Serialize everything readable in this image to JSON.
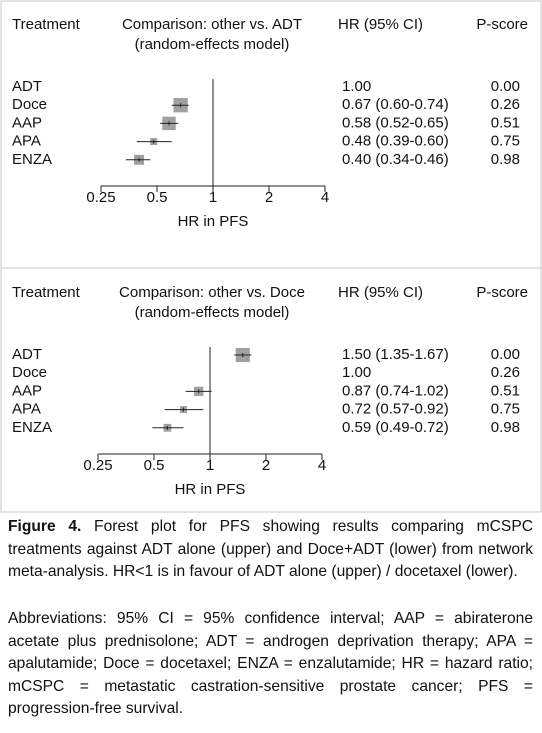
{
  "chart_data": [
    {
      "type": "forest",
      "treatment_header": "Treatment",
      "title": "Comparison: other vs. ADT",
      "subtitle": "(random-effects model)",
      "hr_header": "HR (95% CI)",
      "pscore_header": "P-score",
      "categories": [
        "ADT",
        "Doce",
        "AAP",
        "APA",
        "ENZA"
      ],
      "values": [
        1,
        0.67,
        0.58,
        0.48,
        0.4
      ],
      "ci_lower": [
        null,
        0.6,
        0.52,
        0.39,
        0.34
      ],
      "ci_upper": [
        null,
        0.74,
        0.65,
        0.6,
        0.46
      ],
      "value_labels": [
        "1.00",
        "0.67 (0.60-0.74)",
        "0.58 (0.52-0.65)",
        "0.48 (0.39-0.60)",
        "0.40 (0.34-0.46)"
      ],
      "p_scores": [
        "0.00",
        "0.26",
        "0.51",
        "0.75",
        "0.98"
      ],
      "x_label": "HR in PFS",
      "log_scale": true,
      "xlim": [
        0.25,
        4
      ],
      "xticks": [
        0.25,
        0.5,
        1,
        2,
        4
      ],
      "color": "#a0a0a0"
    },
    {
      "type": "forest",
      "treatment_header": "Treatment",
      "title": "Comparison: other vs. Doce",
      "subtitle": "(random-effects model)",
      "hr_header": "HR (95% CI)",
      "pscore_header": "P-score",
      "categories": [
        "ADT",
        "Doce",
        "AAP",
        "APA",
        "ENZA"
      ],
      "values": [
        1.5,
        1,
        0.87,
        0.72,
        0.59
      ],
      "ci_lower": [
        1.35,
        null,
        0.74,
        0.57,
        0.49
      ],
      "ci_upper": [
        1.67,
        null,
        1.02,
        0.92,
        0.72
      ],
      "value_labels": [
        "1.50 (1.35-1.67)",
        "1.00",
        "0.87 (0.74-1.02)",
        "0.72 (0.57-0.92)",
        "0.59 (0.49-0.72)"
      ],
      "p_scores": [
        "0.00",
        "0.26",
        "0.51",
        "0.75",
        "0.98"
      ],
      "x_label": "HR in PFS",
      "log_scale": true,
      "xlim": [
        0.25,
        4
      ],
      "xticks": [
        0.25,
        0.5,
        1,
        2,
        4
      ],
      "color": "#a0a0a0"
    }
  ],
  "caption": {
    "label": "Figure 4.",
    "text": "Forest plot for PFS showing results comparing mCSPC treatments against ADT alone (upper) and Doce+ADT (lower) from network meta-analysis. HR<1 is in favour of ADT alone (upper) / docetaxel (lower)."
  },
  "abbreviations": "Abbreviations: 95% CI = 95% confidence interval; AAP = abiraterone acetate plus prednisolone; ADT = androgen deprivation therapy; APA = apalutamide; Doce = docetaxel; ENZA = enzalutamide; HR = hazard ratio; mCSPC = metastatic castration-sensitive prostate cancer; PFS = progression-free survival."
}
